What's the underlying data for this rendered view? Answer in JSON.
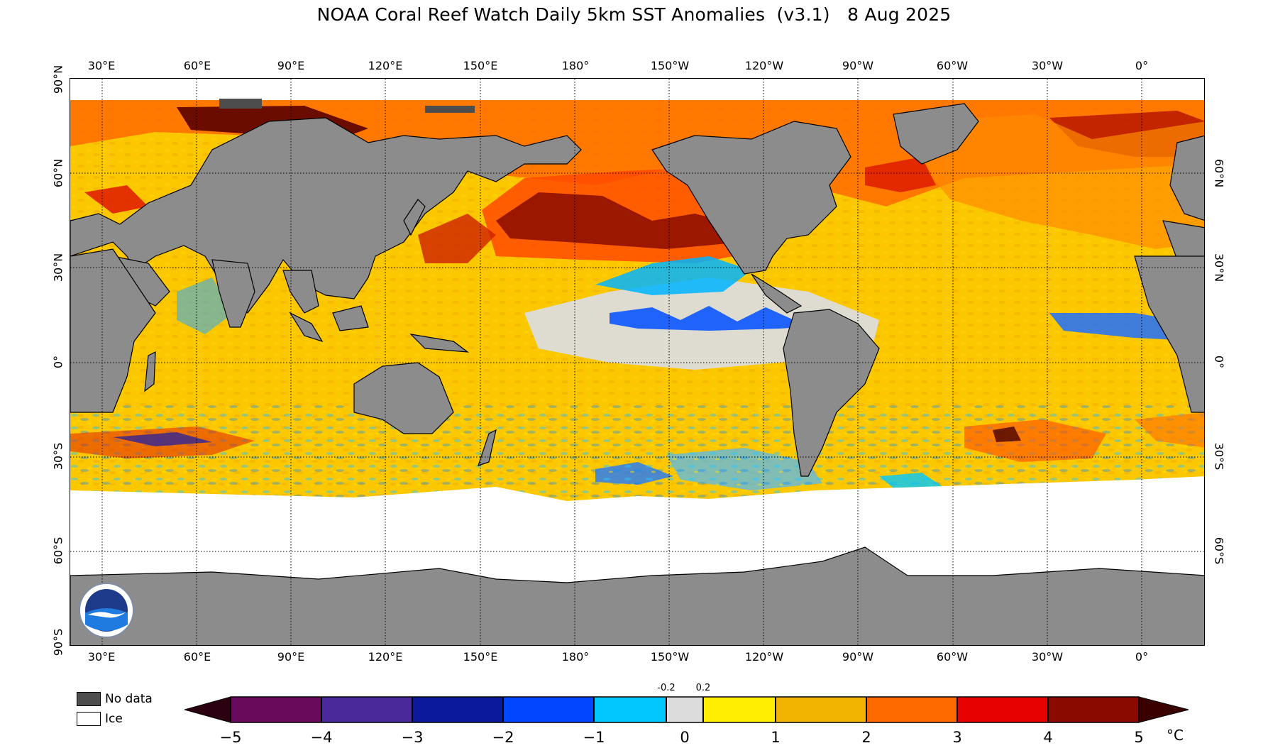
{
  "title": "NOAA Coral Reef Watch Daily 5km SST Anomalies  (v3.1)   8 Aug 2025",
  "map": {
    "projection": "equirectangular",
    "center_longitude": "180°",
    "longitude_labels": [
      "30°E",
      "60°E",
      "90°E",
      "120°E",
      "150°E",
      "180°",
      "150°W",
      "120°W",
      "90°W",
      "60°W",
      "30°W",
      "0°"
    ],
    "latitude_labels": [
      "90°N",
      "60°N",
      "30°N",
      "0°",
      "30°S",
      "60°S",
      "90°S"
    ],
    "colors": {
      "land": "#8c8c8c",
      "no_data": "#4d4d4d",
      "ice": "#ffffff",
      "grid": "#000000"
    }
  },
  "legend": {
    "no_data_label": "No data",
    "ice_label": "Ice"
  },
  "colorbar": {
    "unit": "°C",
    "ticks": [
      "−5",
      "−4",
      "−3",
      "−2",
      "−1",
      "0",
      "1",
      "2",
      "3",
      "4",
      "5"
    ],
    "inner_ticks": [
      "-0.2",
      "0.2"
    ],
    "colors": [
      "#2b0010",
      "#6a0a5a",
      "#4a2a9a",
      "#0a1a9a",
      "#0047ff",
      "#00c8ff",
      "#dcdcdc",
      "#ffee00",
      "#f2b400",
      "#ff6a00",
      "#e60000",
      "#3a0000"
    ]
  },
  "logo": "noaa-logo"
}
